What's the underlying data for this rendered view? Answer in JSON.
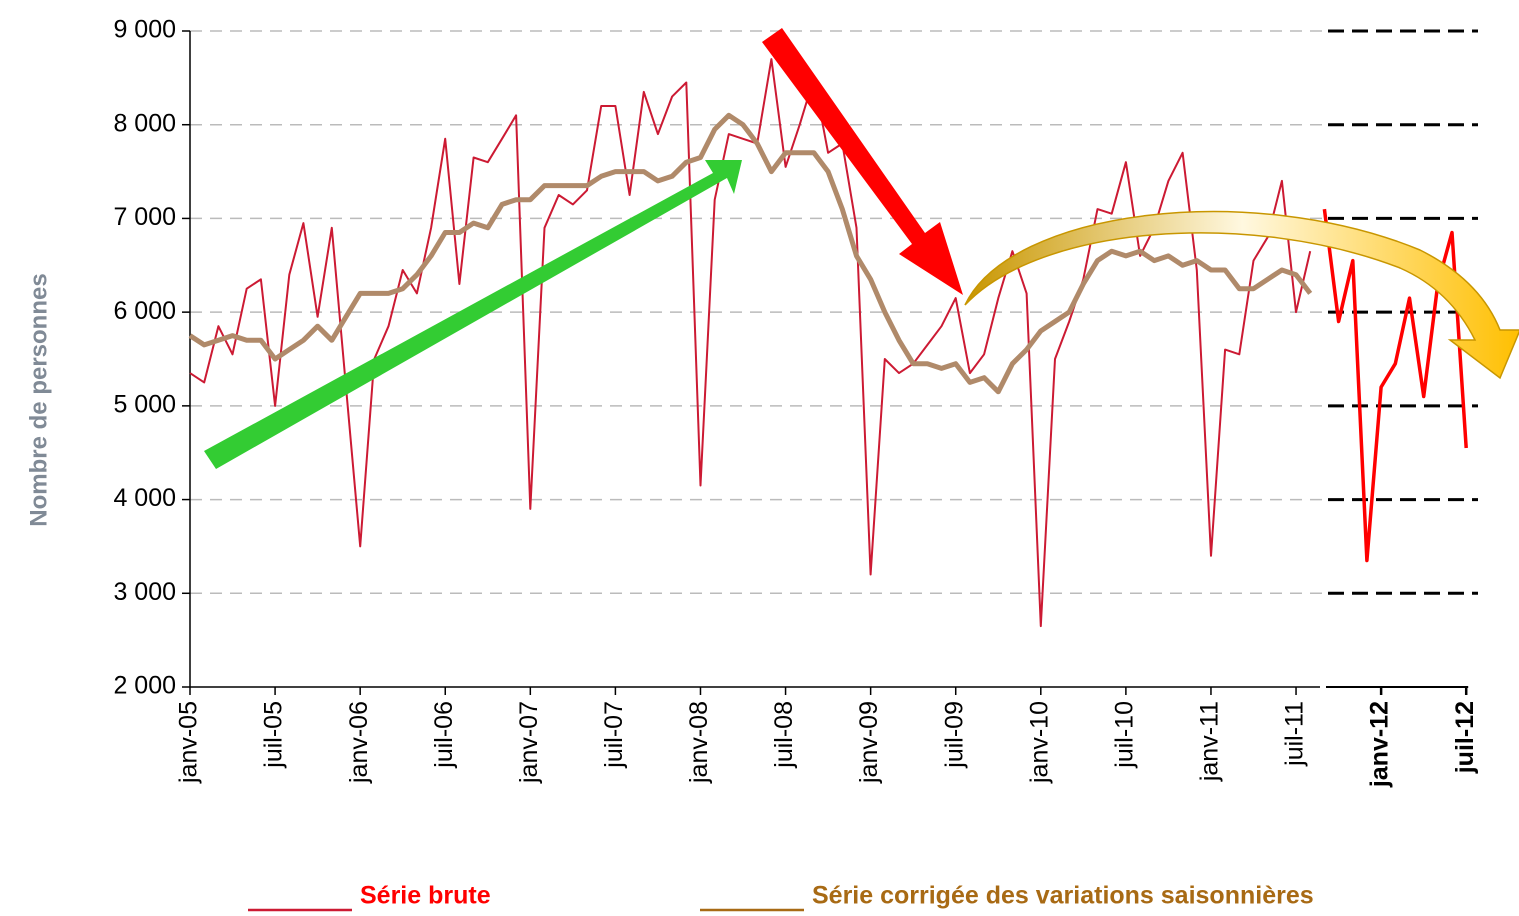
{
  "chart_data": {
    "type": "line",
    "ylabel": "Nombre de personnes",
    "ylim": [
      2000,
      9000
    ],
    "yticks": [
      {
        "value": 2000,
        "label": "2 000"
      },
      {
        "value": 3000,
        "label": "3 000"
      },
      {
        "value": 4000,
        "label": "4 000"
      },
      {
        "value": 5000,
        "label": "5 000"
      },
      {
        "value": 6000,
        "label": "6 000"
      },
      {
        "value": 7000,
        "label": "7 000"
      },
      {
        "value": 8000,
        "label": "8 000"
      },
      {
        "value": 9000,
        "label": "9 000"
      }
    ],
    "grid": true,
    "categories": [
      "janv-05",
      null,
      null,
      null,
      null,
      null,
      "juil-05",
      null,
      null,
      null,
      null,
      null,
      "janv-06",
      null,
      null,
      null,
      null,
      null,
      "juil-06",
      null,
      null,
      null,
      null,
      null,
      "janv-07",
      null,
      null,
      null,
      null,
      null,
      "juil-07",
      null,
      null,
      null,
      null,
      null,
      "janv-08",
      null,
      null,
      null,
      null,
      null,
      "juil-08",
      null,
      null,
      null,
      null,
      null,
      "janv-09",
      null,
      null,
      null,
      null,
      null,
      "juil-09",
      null,
      null,
      null,
      null,
      null,
      "janv-10",
      null,
      null,
      null,
      null,
      null,
      "juil-10",
      null,
      null,
      null,
      null,
      null,
      "janv-11",
      null,
      null,
      null,
      null,
      null,
      "juil-11",
      null,
      null,
      null,
      null,
      null,
      "janv-12",
      null,
      null,
      null,
      null,
      null,
      "juil-12"
    ],
    "series": [
      {
        "name": "Série brute",
        "color": "#cc1a33",
        "values": [
          5350,
          5250,
          5850,
          5550,
          6250,
          6350,
          5000,
          6400,
          6950,
          5950,
          6900,
          5200,
          3500,
          5500,
          5850,
          6450,
          6200,
          6900,
          7850,
          6300,
          7650,
          7600,
          7850,
          8100,
          3900,
          6900,
          7250,
          7150,
          7300,
          8200,
          8200,
          7250,
          8350,
          7900,
          8300,
          8450,
          4150,
          7200,
          7900,
          7850,
          7800,
          8700,
          7550,
          8000,
          8500,
          7700,
          7800,
          6900,
          3200,
          5500,
          5350,
          5450,
          5650,
          5850,
          6150,
          5350,
          5550,
          6150,
          6650,
          6200,
          2650,
          5500,
          5900,
          6350,
          7100,
          7050,
          7600,
          6600,
          6900,
          7400,
          7700,
          6450,
          3400,
          5600,
          5550,
          6550,
          6800,
          7400,
          6000,
          6650,
          null,
          null,
          null,
          null,
          null,
          null,
          null,
          null,
          null,
          null,
          null
        ]
      },
      {
        "name": "Série corrigée des variations saisonnières",
        "color": "#b08a6a",
        "legend_color": "#a86a14",
        "values": [
          5750,
          5650,
          5700,
          5750,
          5700,
          5700,
          5500,
          5600,
          5700,
          5850,
          5700,
          5950,
          6200,
          6200,
          6200,
          6250,
          6400,
          6600,
          6850,
          6850,
          6950,
          6900,
          7150,
          7200,
          7200,
          7350,
          7350,
          7350,
          7350,
          7450,
          7500,
          7500,
          7500,
          7400,
          7450,
          7600,
          7650,
          7950,
          8100,
          8000,
          7800,
          7500,
          7700,
          7700,
          7700,
          7500,
          7100,
          6600,
          6350,
          6000,
          5700,
          5450,
          5450,
          5400,
          5450,
          5250,
          5300,
          5150,
          5450,
          5600,
          5800,
          5900,
          6000,
          6300,
          6550,
          6650,
          6600,
          6650,
          6550,
          6600,
          6500,
          6550,
          6450,
          6450,
          6250,
          6250,
          6350,
          6450,
          6400,
          6200,
          null,
          null,
          null,
          null,
          null,
          null,
          null,
          null,
          null,
          null,
          null
        ]
      },
      {
        "color": "#ff0000",
        "values": [
          null,
          null,
          null,
          null,
          null,
          null,
          null,
          null,
          null,
          null,
          null,
          null,
          null,
          null,
          null,
          null,
          null,
          null,
          null,
          null,
          null,
          null,
          null,
          null,
          null,
          null,
          null,
          null,
          null,
          null,
          null,
          null,
          null,
          null,
          null,
          null,
          null,
          null,
          null,
          null,
          null,
          null,
          null,
          null,
          null,
          null,
          null,
          null,
          null,
          null,
          null,
          null,
          null,
          null,
          null,
          null,
          null,
          null,
          null,
          null,
          null,
          null,
          null,
          null,
          null,
          null,
          null,
          null,
          null,
          null,
          null,
          null,
          null,
          null,
          null,
          null,
          null,
          null,
          null,
          null,
          7100,
          5900,
          6550,
          3350,
          5200,
          5450,
          6150,
          5100,
          6300,
          6850,
          4550
        ]
      }
    ]
  }
}
